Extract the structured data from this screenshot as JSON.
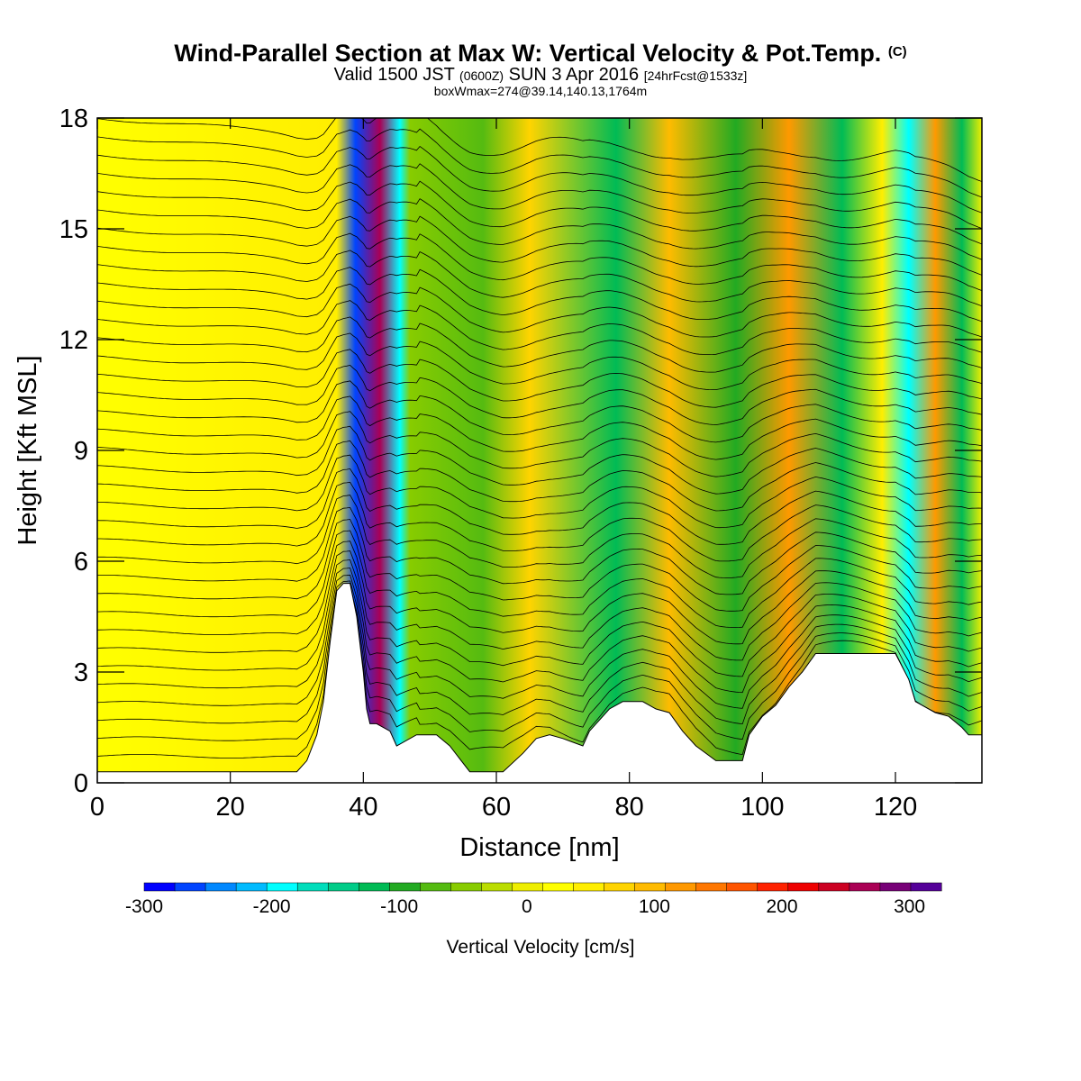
{
  "header": {
    "title_main": "Wind-Parallel Section at Max W: Vertical Velocity & Pot.Temp.",
    "title_c": "(C)",
    "valid_a": "Valid 1500 JST",
    "valid_zulu": "(0600Z)",
    "valid_b": "SUN 3 Apr 2016",
    "forecast": "[24hrFcst@1533z]",
    "box_info": "boxWmax=274@39.14,140.13,1764m"
  },
  "chart_data": {
    "type": "heatmap",
    "xlabel": "Distance [nm]",
    "ylabel": "Height [Kft MSL]",
    "xlim": [
      0,
      133
    ],
    "ylim": [
      0,
      18
    ],
    "x_ticks": [
      0,
      20,
      40,
      60,
      80,
      100,
      120
    ],
    "y_ticks": [
      0,
      3,
      6,
      9,
      12,
      15,
      18
    ],
    "colorbar": {
      "label": "Vertical Velocity [cm/s]",
      "range": [
        -300,
        325
      ],
      "ticks": [
        -300,
        -200,
        -100,
        0,
        100,
        200,
        300
      ],
      "colors": [
        "#0000ff",
        "#0044ff",
        "#0088ff",
        "#00bbff",
        "#00ffff",
        "#00ddbb",
        "#00cc88",
        "#00bb55",
        "#22aa22",
        "#55bb11",
        "#88cc00",
        "#bbdd00",
        "#eeee00",
        "#ffff00",
        "#ffee00",
        "#ffd400",
        "#ffbb00",
        "#ff9900",
        "#ff7700",
        "#ff5500",
        "#ff2200",
        "#ee0000",
        "#cc0022",
        "#aa0055",
        "#770077",
        "#550099"
      ]
    },
    "terrain_kft": [
      [
        0,
        0.3
      ],
      [
        30,
        0.3
      ],
      [
        31.5,
        0.6
      ],
      [
        33,
        1.3
      ],
      [
        34,
        2.2
      ],
      [
        35,
        3.8
      ],
      [
        36,
        5.2
      ],
      [
        37,
        5.4
      ],
      [
        38,
        5.4
      ],
      [
        39,
        4.5
      ],
      [
        40,
        3.0
      ],
      [
        40.5,
        2.0
      ],
      [
        41,
        1.6
      ],
      [
        42,
        1.6
      ],
      [
        44,
        1.4
      ],
      [
        45,
        1.0
      ],
      [
        48,
        1.3
      ],
      [
        51,
        1.3
      ],
      [
        53,
        1.0
      ],
      [
        56,
        0.3
      ],
      [
        61,
        0.3
      ],
      [
        64,
        0.8
      ],
      [
        66,
        1.2
      ],
      [
        68,
        1.3
      ],
      [
        70,
        1.2
      ],
      [
        73,
        1.0
      ],
      [
        74,
        1.4
      ],
      [
        77,
        2.0
      ],
      [
        79,
        2.2
      ],
      [
        82,
        2.2
      ],
      [
        84,
        2.0
      ],
      [
        86,
        1.9
      ],
      [
        88,
        1.4
      ],
      [
        90,
        1.0
      ],
      [
        93,
        0.6
      ],
      [
        97,
        0.6
      ],
      [
        98,
        1.3
      ],
      [
        100,
        1.8
      ],
      [
        102,
        2.1
      ],
      [
        104,
        2.6
      ],
      [
        106,
        3.0
      ],
      [
        108,
        3.5
      ],
      [
        115,
        3.5
      ],
      [
        120,
        3.5
      ],
      [
        122,
        2.8
      ],
      [
        123,
        2.2
      ],
      [
        126,
        1.9
      ],
      [
        128,
        1.8
      ],
      [
        130,
        1.5
      ],
      [
        131,
        1.3
      ],
      [
        133,
        1.3
      ]
    ],
    "vertical_velocity_bands": [
      {
        "x": 38.8,
        "w_cm_s": -260
      },
      {
        "x": 42.5,
        "w_cm_s": 274
      },
      {
        "x": 45.5,
        "w_cm_s": -180
      },
      {
        "x": 36,
        "w_cm_s": 60
      },
      {
        "x": 47,
        "w_cm_s": -40
      },
      {
        "x": 58,
        "w_cm_s": -80
      },
      {
        "x": 65,
        "w_cm_s": 70
      },
      {
        "x": 78,
        "w_cm_s": -110
      },
      {
        "x": 86,
        "w_cm_s": 100
      },
      {
        "x": 96,
        "w_cm_s": -100
      },
      {
        "x": 104,
        "w_cm_s": 110
      },
      {
        "x": 112,
        "w_cm_s": -130
      },
      {
        "x": 118,
        "w_cm_s": 60
      },
      {
        "x": 122,
        "w_cm_s": -180
      },
      {
        "x": 126,
        "w_cm_s": 120
      },
      {
        "x": 130,
        "w_cm_s": -120
      }
    ]
  }
}
